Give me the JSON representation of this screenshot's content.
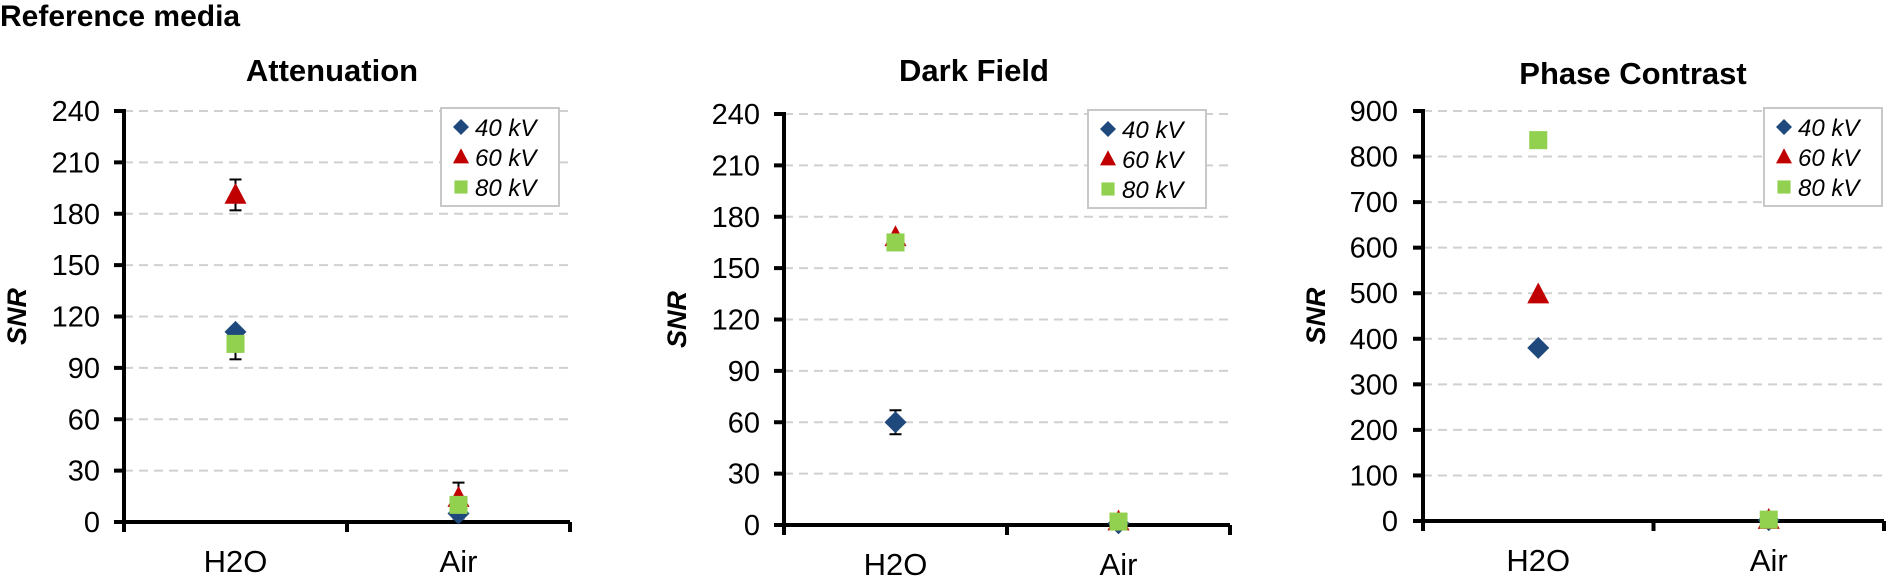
{
  "figure_title": "Reference media",
  "chart_data": [
    {
      "type": "scatter",
      "title": "Attenuation",
      "ylabel": "SNR",
      "xlabel": "",
      "categories": [
        "H2O",
        "Air"
      ],
      "ylim": [
        0,
        240
      ],
      "yticks": [
        0,
        30,
        60,
        90,
        120,
        150,
        180,
        210,
        240
      ],
      "grid": true,
      "legend": "top-right",
      "series": [
        {
          "name": "40 kV",
          "marker": "diamond",
          "color": "#1f497d",
          "values": [
            111,
            5
          ],
          "errors": [
            null,
            3
          ]
        },
        {
          "name": "60 kV",
          "marker": "triangle",
          "color": "#c00000",
          "values": [
            191,
            14
          ],
          "errors": [
            9,
            9
          ]
        },
        {
          "name": "80 kV",
          "marker": "square",
          "color": "#92d050",
          "values": [
            104,
            10
          ],
          "errors": [
            9,
            4
          ]
        }
      ]
    },
    {
      "type": "scatter",
      "title": "Dark Field",
      "ylabel": "SNR",
      "xlabel": "",
      "categories": [
        "H2O",
        "Air"
      ],
      "ylim": [
        0,
        240
      ],
      "yticks": [
        0,
        30,
        60,
        90,
        120,
        150,
        180,
        210,
        240
      ],
      "grid": true,
      "legend": "top-right",
      "series": [
        {
          "name": "40 kV",
          "marker": "diamond",
          "color": "#1f497d",
          "values": [
            60,
            1
          ],
          "errors": [
            7,
            null
          ]
        },
        {
          "name": "60 kV",
          "marker": "triangle",
          "color": "#c00000",
          "values": [
            168,
            2
          ],
          "errors": [
            null,
            3
          ]
        },
        {
          "name": "80 kV",
          "marker": "square",
          "color": "#92d050",
          "values": [
            165,
            2
          ],
          "errors": [
            null,
            4
          ]
        }
      ]
    },
    {
      "type": "scatter",
      "title": "Phase Contrast",
      "ylabel": "SNR",
      "xlabel": "",
      "categories": [
        "H2O",
        "Air"
      ],
      "ylim": [
        0,
        900
      ],
      "yticks": [
        0,
        100,
        200,
        300,
        400,
        500,
        600,
        700,
        800,
        900
      ],
      "grid": true,
      "legend": "top-right",
      "series": [
        {
          "name": "40 kV",
          "marker": "diamond",
          "color": "#1f497d",
          "values": [
            380,
            2
          ],
          "errors": [
            null,
            null
          ]
        },
        {
          "name": "60 kV",
          "marker": "triangle",
          "color": "#c00000",
          "values": [
            497,
            2
          ],
          "errors": [
            null,
            null
          ]
        },
        {
          "name": "80 kV",
          "marker": "square",
          "color": "#92d050",
          "values": [
            836,
            3
          ],
          "errors": [
            null,
            null
          ]
        }
      ]
    }
  ]
}
